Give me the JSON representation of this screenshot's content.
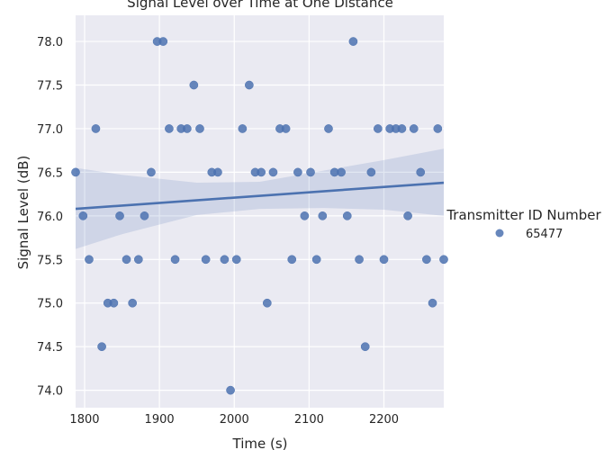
{
  "chart_data": {
    "type": "scatter",
    "title": "Signal Level over Time at One Distance",
    "xlabel": "Time (s)",
    "ylabel": "Signal Level (dB)",
    "xlim": [
      1788,
      2280
    ],
    "ylim": [
      73.8,
      78.3
    ],
    "xticks": [
      "1800",
      "1900",
      "2000",
      "2100",
      "2200"
    ],
    "xtick_values": [
      1800,
      1900,
      2000,
      2100,
      2200
    ],
    "yticks": [
      "74.0",
      "74.5",
      "75.0",
      "75.5",
      "76.0",
      "76.5",
      "77.0",
      "77.5",
      "78.0"
    ],
    "ytick_values": [
      74.0,
      74.5,
      75.0,
      75.5,
      76.0,
      76.5,
      77.0,
      77.5,
      78.0
    ],
    "grid": true,
    "legend": {
      "title": "Transmitter ID Number",
      "placement": "right"
    },
    "series": [
      {
        "name": "65477",
        "color": "#4c72b0",
        "points": [
          [
            1788,
            76.5
          ],
          [
            1798,
            76.0
          ],
          [
            1806,
            75.5
          ],
          [
            1815,
            77.0
          ],
          [
            1823,
            74.5
          ],
          [
            1831,
            75.0
          ],
          [
            1839,
            75.0
          ],
          [
            1847,
            76.0
          ],
          [
            1856,
            75.5
          ],
          [
            1864,
            75.0
          ],
          [
            1872,
            75.5
          ],
          [
            1880,
            76.0
          ],
          [
            1889,
            76.5
          ],
          [
            1897,
            78.0
          ],
          [
            1905,
            78.0
          ],
          [
            1913,
            77.0
          ],
          [
            1921,
            75.5
          ],
          [
            1929,
            77.0
          ],
          [
            1937,
            77.0
          ],
          [
            1946,
            77.5
          ],
          [
            1954,
            77.0
          ],
          [
            1962,
            75.5
          ],
          [
            1970,
            76.5
          ],
          [
            1978,
            76.5
          ],
          [
            1987,
            75.5
          ],
          [
            1995,
            74.0
          ],
          [
            2003,
            75.5
          ],
          [
            2011,
            77.0
          ],
          [
            2020,
            77.5
          ],
          [
            2028,
            76.5
          ],
          [
            2036,
            76.5
          ],
          [
            2044,
            75.0
          ],
          [
            2052,
            76.5
          ],
          [
            2061,
            77.0
          ],
          [
            2069,
            77.0
          ],
          [
            2077,
            75.5
          ],
          [
            2085,
            76.5
          ],
          [
            2094,
            76.0
          ],
          [
            2102,
            76.5
          ],
          [
            2110,
            75.5
          ],
          [
            2118,
            76.0
          ],
          [
            2126,
            77.0
          ],
          [
            2134,
            76.5
          ],
          [
            2143,
            76.5
          ],
          [
            2151,
            76.0
          ],
          [
            2159,
            78.0
          ],
          [
            2167,
            75.5
          ],
          [
            2175,
            74.5
          ],
          [
            2183,
            76.5
          ],
          [
            2192,
            77.0
          ],
          [
            2200,
            75.5
          ],
          [
            2208,
            77.0
          ],
          [
            2216,
            77.0
          ],
          [
            2224,
            77.0
          ],
          [
            2232,
            76.0
          ],
          [
            2240,
            77.0
          ],
          [
            2249,
            76.5
          ],
          [
            2257,
            75.5
          ],
          [
            2265,
            75.0
          ],
          [
            2272,
            77.0
          ],
          [
            2280,
            75.5
          ]
        ],
        "regression": {
          "x": [
            1788,
            2280
          ],
          "y": [
            76.08,
            76.38
          ]
        },
        "confidence_band": {
          "x": [
            1788,
            1850,
            1950,
            2034,
            2120,
            2200,
            2280
          ],
          "upper": [
            76.55,
            76.47,
            76.38,
            76.39,
            76.52,
            76.64,
            76.77
          ],
          "lower": [
            75.62,
            75.79,
            76.01,
            76.08,
            76.09,
            76.07,
            76.0
          ]
        }
      }
    ]
  }
}
